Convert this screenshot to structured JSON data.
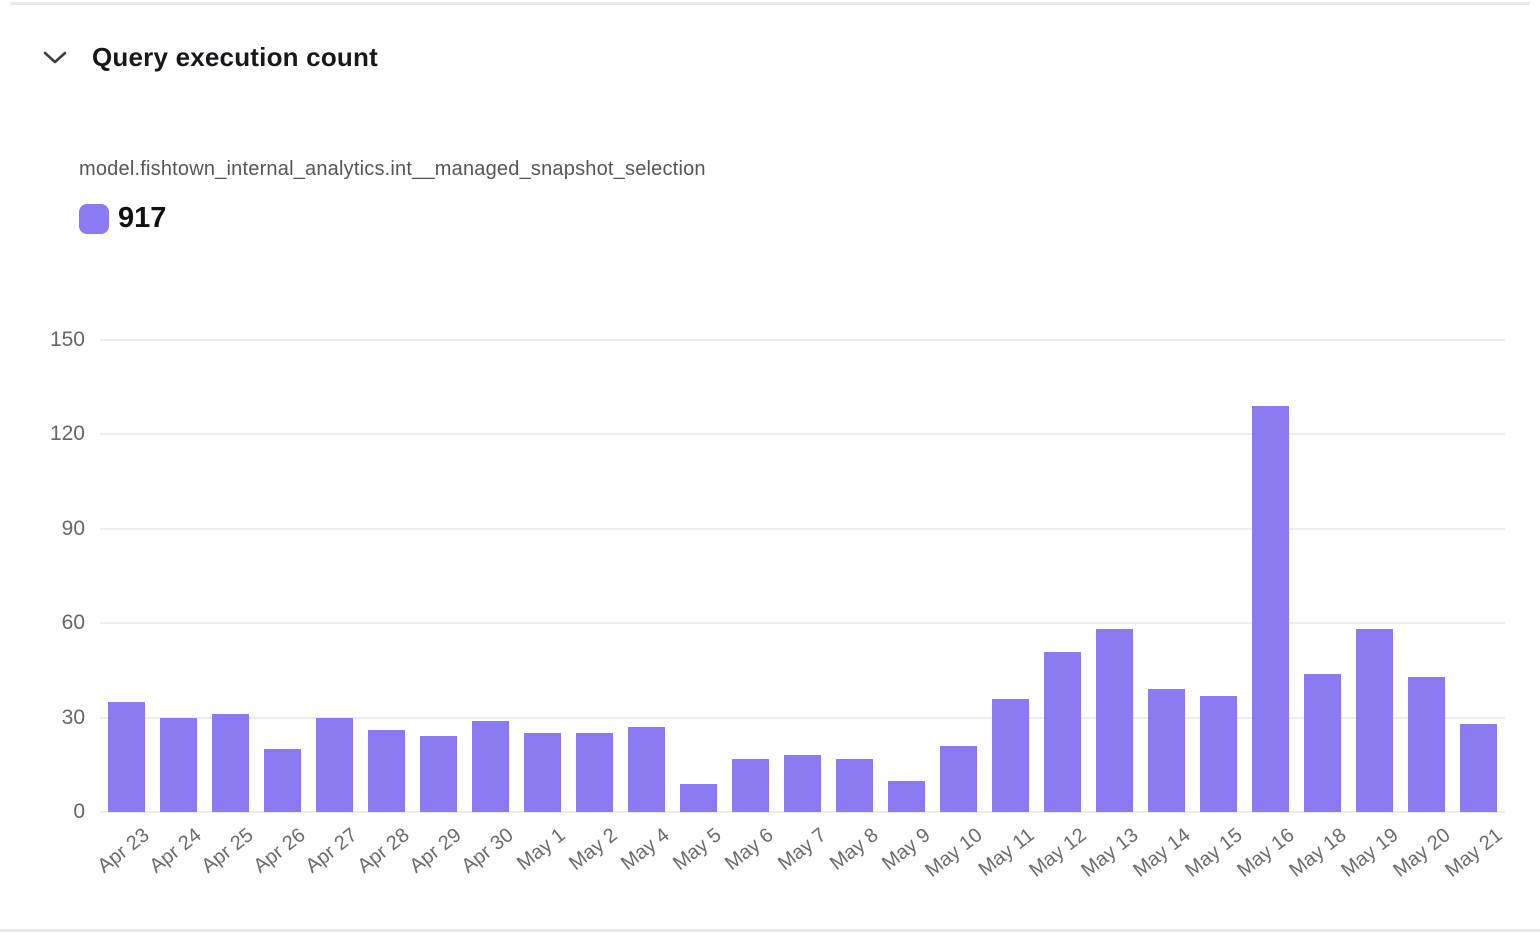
{
  "header": {
    "title": "Query execution count"
  },
  "series": {
    "model_name": "model.fishtown_internal_analytics.int__managed_snapshot_selection",
    "legend_value": "917"
  },
  "colors": {
    "bar": "#8B7AF2",
    "grid": "#ececec",
    "axis_text": "#6b6b6b"
  },
  "chart_data": {
    "type": "bar",
    "title": "Query execution count",
    "series_name": "model.fishtown_internal_analytics.int__managed_snapshot_selection",
    "legend_label": "917",
    "categories": [
      "Apr 23",
      "Apr 24",
      "Apr 25",
      "Apr 26",
      "Apr 27",
      "Apr 28",
      "Apr 29",
      "Apr 30",
      "May 1",
      "May 2",
      "May 4",
      "May 5",
      "May 6",
      "May 7",
      "May 8",
      "May 9",
      "May 10",
      "May 11",
      "May 12",
      "May 13",
      "May 14",
      "May 15",
      "May 16",
      "May 18",
      "May 19",
      "May 20",
      "May 21"
    ],
    "values": [
      35,
      30,
      31,
      20,
      30,
      26,
      24,
      29,
      25,
      25,
      27,
      9,
      17,
      18,
      17,
      10,
      21,
      36,
      51,
      58,
      39,
      37,
      129,
      44,
      58,
      43,
      28
    ],
    "total": 917,
    "xlabel": "",
    "ylabel": "",
    "ylim": [
      0,
      150
    ],
    "yticks": [
      0,
      30,
      60,
      90,
      120,
      150
    ],
    "grid": true,
    "bar_color": "#8B7AF2",
    "legend_position": "top-left"
  }
}
